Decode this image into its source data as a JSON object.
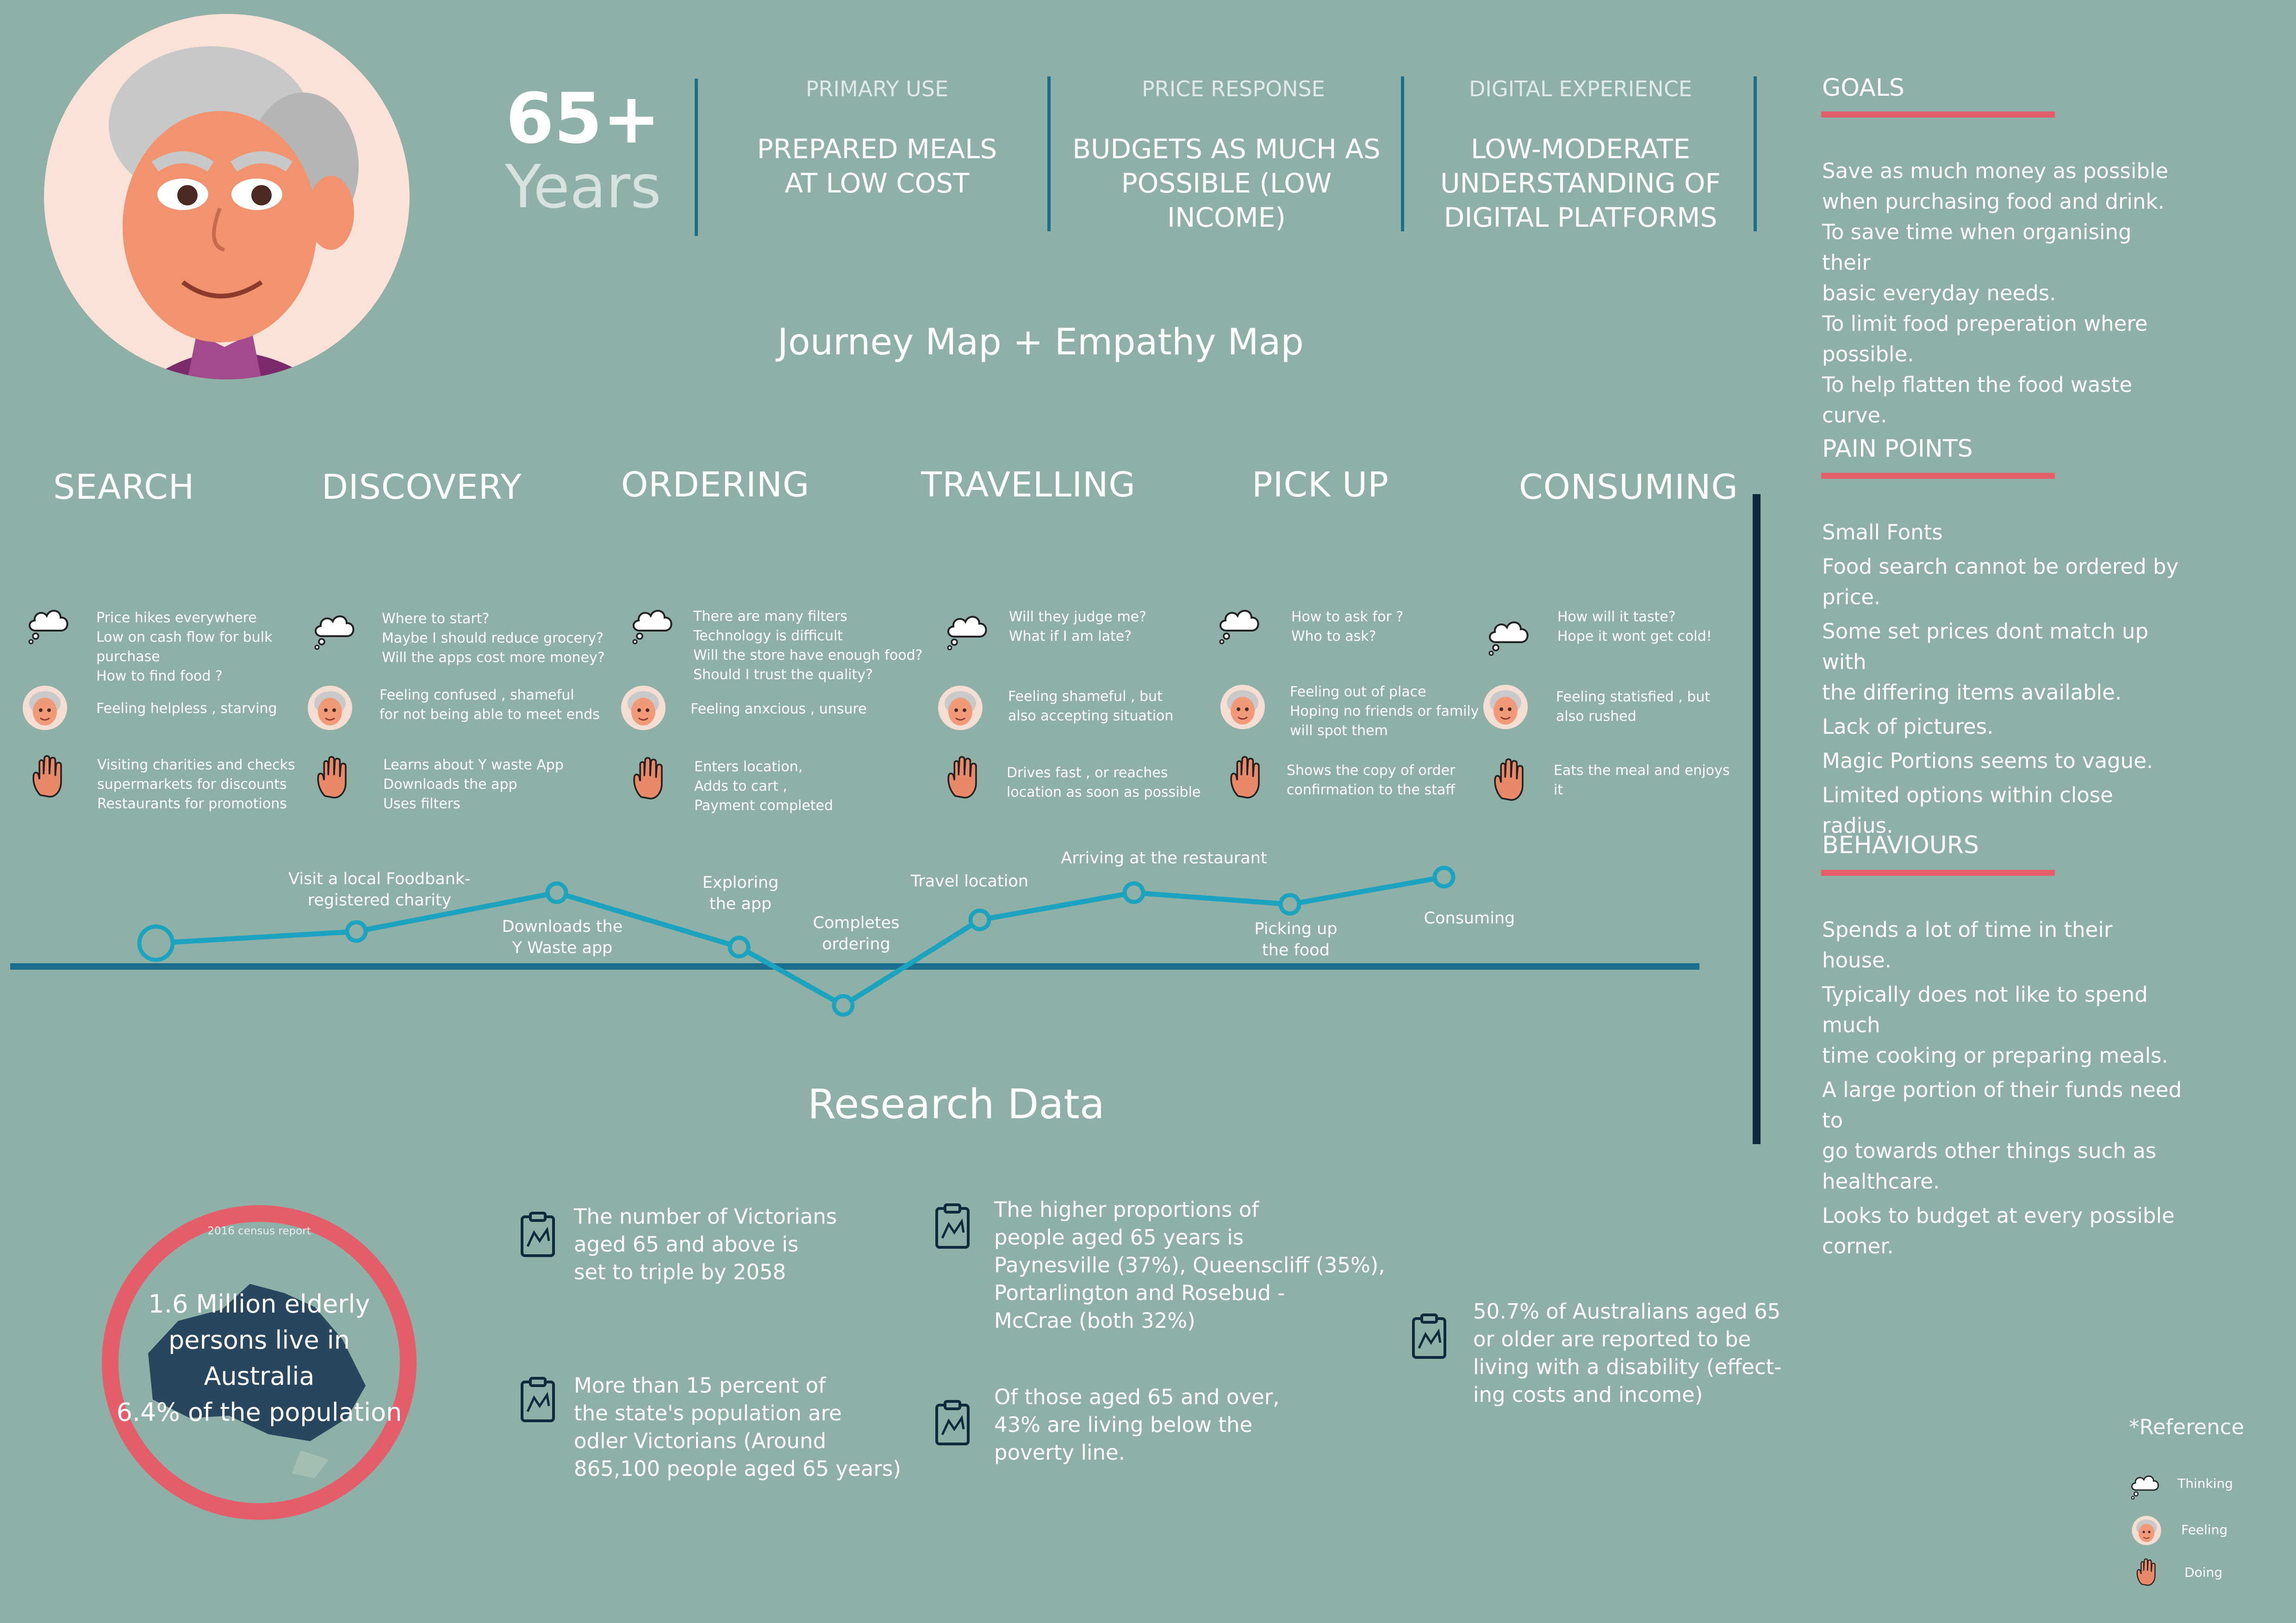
{
  "header": {
    "age_number": "65+",
    "age_unit": "Years",
    "stats": [
      {
        "label": "PRIMARY USE",
        "value": "PREPARED MEALS\nAT LOW COST"
      },
      {
        "label": "PRICE RESPONSE",
        "value": "BUDGETS AS MUCH AS\nPOSSIBLE (LOW INCOME)"
      },
      {
        "label": "DIGITAL EXPERIENCE",
        "value": "LOW-MODERATE\nUNDERSTANDING OF\nDIGITAL PLATFORMS"
      }
    ],
    "map_title": "Journey Map + Empathy Map"
  },
  "colors": {
    "background": "#8fb0a6",
    "accent_red": "#e35d6a",
    "line_blue": "#1ba3c0",
    "base_blue": "#1c6f8c",
    "dark_navy": "#0f2a3d",
    "hand": "#e8896a"
  },
  "stages": [
    {
      "title": "SEARCH",
      "thinking": "Price hikes everywhere\nLow on cash flow for bulk\npurchase\nHow to find food ?",
      "feeling": "Feeling helpless , starving",
      "doing": "Visiting charities and checks\nsupermarkets for discounts\nRestaurants for promotions"
    },
    {
      "title": "DISCOVERY",
      "thinking": "Where to start?\nMaybe I should reduce grocery?\nWill the apps cost more money?",
      "feeling": "Feeling confused , shameful\nfor not being able to meet ends",
      "doing": "Learns about Y waste App\nDownloads the app\nUses filters"
    },
    {
      "title": "ORDERING",
      "thinking": "There are many filters\nTechnology is difficult\nWill the store have enough food?\nShould I trust the quality?",
      "feeling": "Feeling anxcious , unsure",
      "doing": "Enters location,\nAdds to cart ,\nPayment completed"
    },
    {
      "title": "TRAVELLING",
      "thinking": "Will they judge me?\nWhat if I am late?",
      "feeling": "Feeling shameful , but\nalso accepting situation",
      "doing": "Drives fast , or reaches\nlocation as soon as possible"
    },
    {
      "title": "PICK UP",
      "thinking": "How to ask for ?\nWho to ask?",
      "feeling": "Feeling out of place\nHoping no friends or family\nwill spot them",
      "doing": "Shows the copy of order\nconfirmation to the staff"
    },
    {
      "title": "CONSUMING",
      "thinking": "How will it taste?\nHope it wont get cold!",
      "feeling": "Feeling statisfied , but\nalso rushed",
      "doing": "Eats the meal and enjoys\nit"
    }
  ],
  "journey_points": [
    {
      "label": "",
      "level": 0.6
    },
    {
      "label": "Visit a local Foodbank-\nregistered charity",
      "level": 0.9
    },
    {
      "label": "Downloads the\nY Waste app",
      "level": 1.9
    },
    {
      "label": "Exploring\nthe app",
      "level": 0.5
    },
    {
      "label": "Completes\nordering",
      "level": -1.0
    },
    {
      "label": "Travel location",
      "level": 1.2
    },
    {
      "label": "Arriving at the restaurant",
      "level": 1.9
    },
    {
      "label": "Picking up\nthe food",
      "level": 1.6
    },
    {
      "label": "Consuming",
      "level": 2.3
    }
  ],
  "sidebar": {
    "goals_title": "GOALS",
    "goals": [
      "Save as much money as possible\nwhen purchasing food and drink.",
      "To save time when organising their\nbasic everyday needs.",
      "To limit food preperation where\npossible.",
      "To help flatten the food waste curve."
    ],
    "pain_title": "PAIN POINTS",
    "pain_points": [
      "Small Fonts",
      "Food search cannot be ordered by\nprice.",
      "Some set prices dont match up with\nthe differing items available.",
      "Lack of pictures.",
      "Magic Portions seems to vague.",
      "Limited options within close radius."
    ],
    "behaviours_title": "BEHAVIOURS",
    "behaviours": [
      "Spends a lot of time in their house.",
      "Typically does not like to spend much\ntime cooking or preparing meals.",
      "A large portion of their funds need to\ngo towards other things such as\nhealthcare.",
      "Looks to budget at every possible\ncorner."
    ]
  },
  "research": {
    "title": "Research Data",
    "census_caption": "2016 census report",
    "census_text": "1.6 Million elderly\npersons live in Australia\n6.4% of the population",
    "facts": [
      "The number of Victorians\naged 65 and above is\nset to triple by 2058",
      "More than 15 percent of\nthe state's population are\nodler Victorians (Around\n865,100 people aged 65 years)",
      "The higher proportions of\npeople aged 65 years is\nPaynesville (37%), Queenscliff (35%),\nPortarlington and Rosebud -\nMcCrae (both 32%)",
      "Of those aged 65 and over,\n43% are living below the\npoverty line.",
      "50.7% of Australians aged 65\nor older are reported to be\nliving with a disability (effect-\ning costs and income)"
    ]
  },
  "legend": {
    "title": "*Reference",
    "thinking": "Thinking",
    "feeling": "Feeling",
    "doing": "Doing"
  }
}
